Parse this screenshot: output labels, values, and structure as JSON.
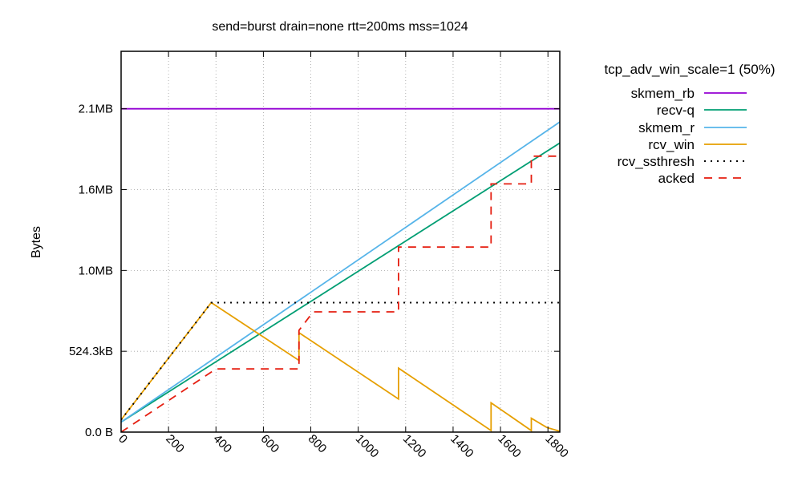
{
  "chart_data": {
    "type": "line",
    "title": "send=burst drain=none rtt=200ms mss=1024",
    "xlabel": "",
    "ylabel": "Bytes",
    "xlim": [
      0,
      1850
    ],
    "ylim": [
      0,
      2470000
    ],
    "x_ticks": [
      0,
      200,
      400,
      600,
      800,
      1000,
      1200,
      1400,
      1600,
      1800
    ],
    "y_ticks": [
      {
        "value": 0,
        "label": "0.0 B"
      },
      {
        "value": 524300,
        "label": "524.3kB"
      },
      {
        "value": 1048576,
        "label": "1.0MB"
      },
      {
        "value": 1572864,
        "label": "1.6MB"
      },
      {
        "value": 2097152,
        "label": "2.1MB"
      }
    ],
    "grid": true,
    "legend_title": "tcp_adv_win_scale=1 (50%)",
    "legend_position": "outside-right",
    "series": [
      {
        "name": "skmem_rb",
        "color": "#9400d3",
        "dash": "solid",
        "x": [
          0,
          1850
        ],
        "y": [
          2097152,
          2097152
        ]
      },
      {
        "name": "recv-q",
        "color": "#009e73",
        "dash": "solid",
        "x": [
          0,
          1850
        ],
        "y": [
          65000,
          1875000
        ]
      },
      {
        "name": "skmem_r",
        "color": "#56b4e9",
        "dash": "solid",
        "x": [
          0,
          1850
        ],
        "y": [
          65000,
          2012000
        ]
      },
      {
        "name": "rcv_win",
        "color": "#e69f00",
        "dash": "solid",
        "x": [
          0,
          380,
          750,
          750,
          1170,
          1170,
          1560,
          1560,
          1730,
          1730,
          1795,
          1850
        ],
        "y": [
          80000,
          840000,
          465000,
          645000,
          215000,
          415000,
          10000,
          190000,
          10000,
          90000,
          30000,
          5000
        ]
      },
      {
        "name": "rcv_ssthresh",
        "color": "#000000",
        "dash": "dotted",
        "x": [
          0,
          380,
          1850
        ],
        "y": [
          80000,
          840000,
          840000
        ]
      },
      {
        "name": "acked",
        "color": "#e51e10",
        "dash": "dashed",
        "x": [
          0,
          400,
          750,
          750,
          810,
          1170,
          1170,
          1560,
          1560,
          1730,
          1730,
          1850
        ],
        "y": [
          0,
          410000,
          410000,
          660000,
          780000,
          780000,
          1200000,
          1200000,
          1610000,
          1610000,
          1790000,
          1790000
        ]
      }
    ]
  }
}
